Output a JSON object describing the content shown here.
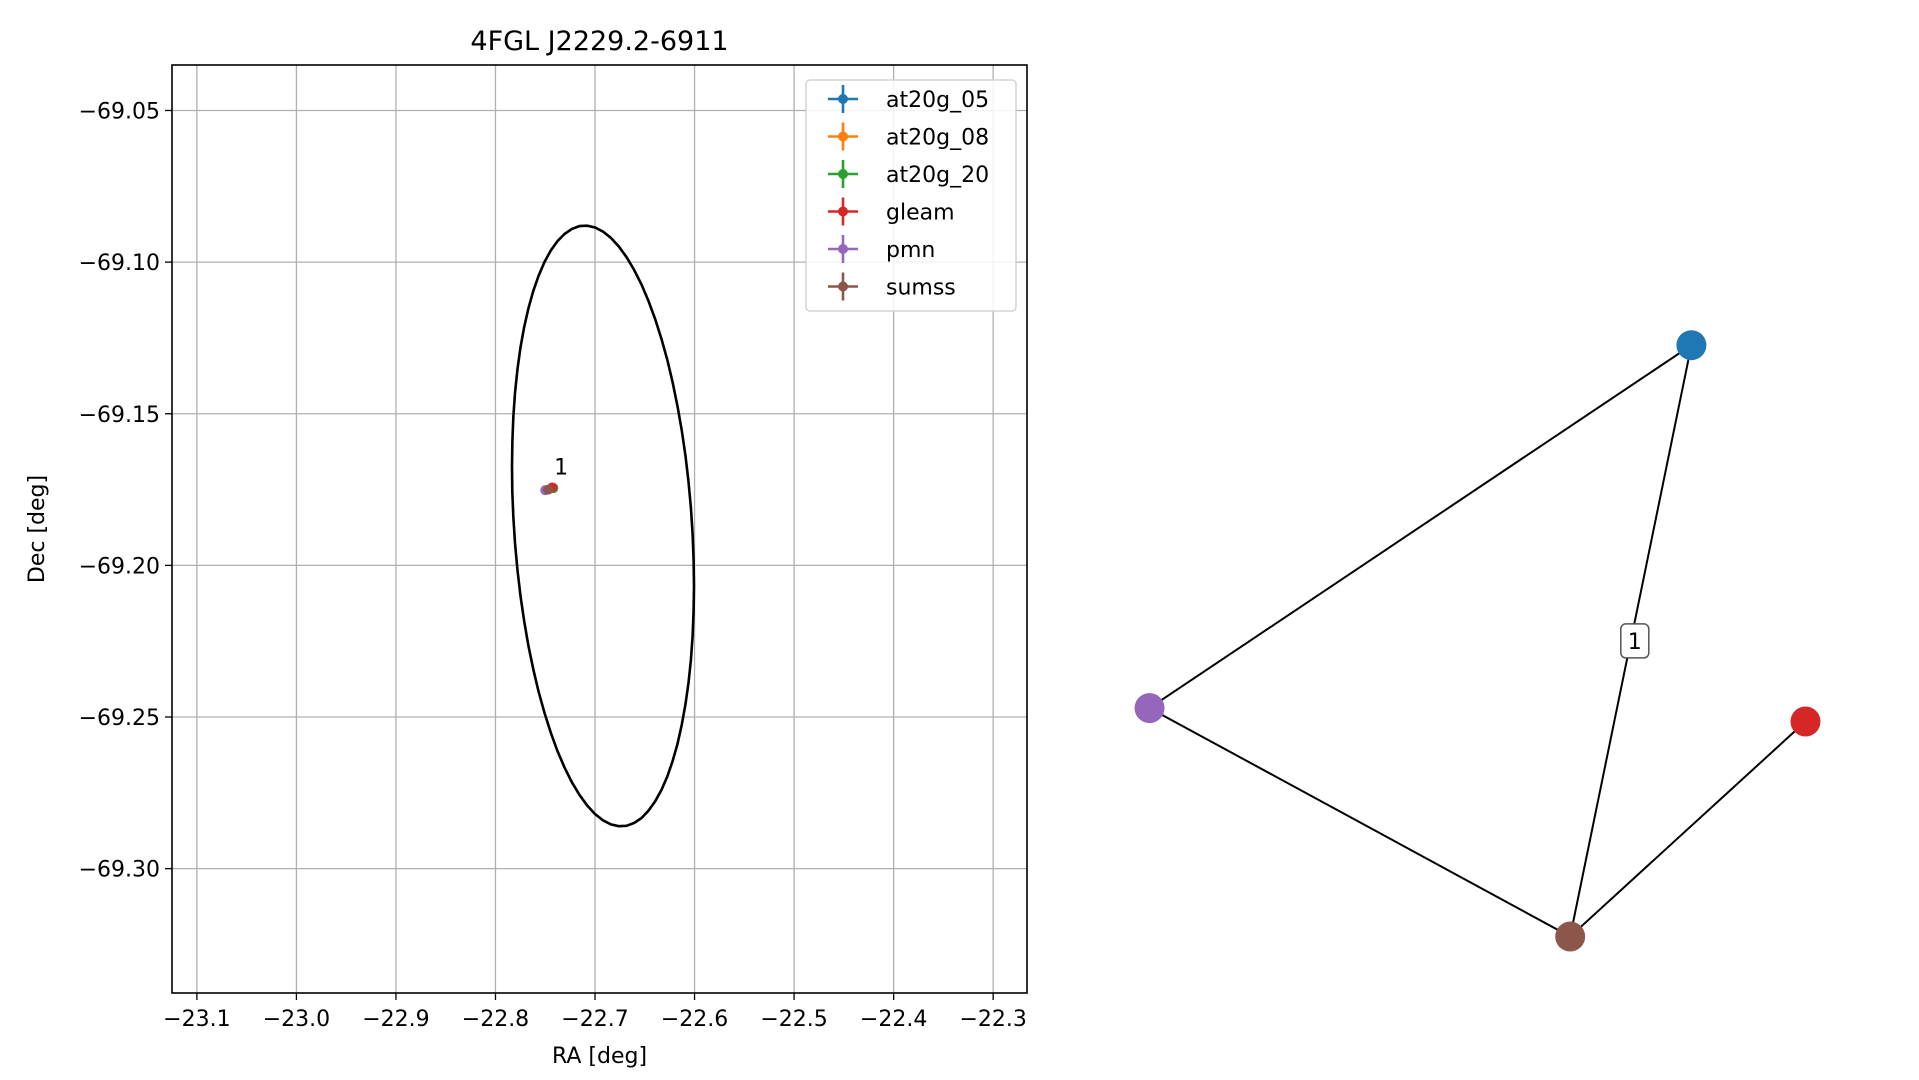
{
  "chart_data": [
    {
      "type": "scatter",
      "title": "4FGL J2229.2-6911",
      "xlabel": "RA [deg]",
      "ylabel": "Dec [deg]",
      "xlim": [
        -23.125,
        -22.266
      ],
      "ylim": [
        -69.341,
        -69.035
      ],
      "xticks": [
        {
          "value": -23.1,
          "label": "−23.1"
        },
        {
          "value": -23.0,
          "label": "−23.0"
        },
        {
          "value": -22.9,
          "label": "−22.9"
        },
        {
          "value": -22.8,
          "label": "−22.8"
        },
        {
          "value": -22.7,
          "label": "−22.7"
        },
        {
          "value": -22.6,
          "label": "−22.6"
        },
        {
          "value": -22.5,
          "label": "−22.5"
        },
        {
          "value": -22.4,
          "label": "−22.4"
        },
        {
          "value": -22.3,
          "label": "−22.3"
        }
      ],
      "yticks": [
        {
          "value": -69.05,
          "label": "−69.05"
        },
        {
          "value": -69.1,
          "label": "−69.10"
        },
        {
          "value": -69.15,
          "label": "−69.15"
        },
        {
          "value": -69.2,
          "label": "−69.20"
        },
        {
          "value": -69.25,
          "label": "−69.25"
        },
        {
          "value": -69.3,
          "label": "−69.30"
        }
      ],
      "grid": true,
      "legend_position": "upper right",
      "series": [
        {
          "name": "at20g_05",
          "color": "#1f77b4",
          "points": [
            {
              "x": -22.742,
              "y": -69.1745
            }
          ]
        },
        {
          "name": "at20g_08",
          "color": "#ff7f0e",
          "points": [
            {
              "x": -22.742,
              "y": -69.1745
            }
          ]
        },
        {
          "name": "at20g_20",
          "color": "#2ca02c",
          "points": [
            {
              "x": -22.742,
              "y": -69.1745
            }
          ]
        },
        {
          "name": "gleam",
          "color": "#d62728",
          "points": [
            {
              "x": -22.743,
              "y": -69.1743
            }
          ]
        },
        {
          "name": "pmn",
          "color": "#9467bd",
          "points": [
            {
              "x": -22.75,
              "y": -69.1752
            }
          ]
        },
        {
          "name": "sumss",
          "color": "#8c564b",
          "points": [
            {
              "x": -22.747,
              "y": -69.175
            }
          ]
        }
      ],
      "ellipse": {
        "center_x": -22.692,
        "center_y": -69.187,
        "semi_major_deg": 0.105,
        "semi_minor_deg": 0.0845,
        "angle_deg": 124
      },
      "annotations": [
        {
          "text": "1",
          "x": -22.734,
          "y": -69.17
        }
      ]
    },
    {
      "type": "network",
      "nodes": [
        {
          "id": "at20g_05",
          "color": "#1f77b4",
          "x": 0.8,
          "y": 0.9
        },
        {
          "id": "pmn",
          "color": "#9467bd",
          "x": 0.04,
          "y": 0.36
        },
        {
          "id": "gleam",
          "color": "#d62728",
          "x": 0.96,
          "y": 0.34
        },
        {
          "id": "sumss",
          "color": "#8c564b",
          "x": 0.63,
          "y": 0.02
        }
      ],
      "edges": [
        {
          "source": "at20g_05",
          "target": "pmn",
          "label": ""
        },
        {
          "source": "at20g_05",
          "target": "sumss",
          "label": "1"
        },
        {
          "source": "pmn",
          "target": "sumss",
          "label": ""
        },
        {
          "source": "sumss",
          "target": "gleam",
          "label": ""
        }
      ]
    }
  ]
}
